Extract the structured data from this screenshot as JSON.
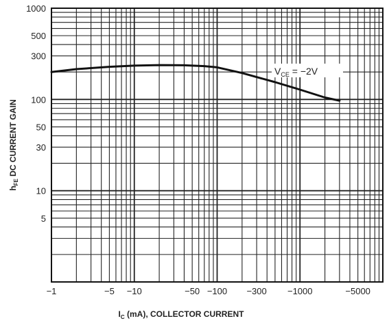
{
  "chart_data": {
    "type": "line",
    "title": "",
    "xlabel": "I_C (mA), COLLECTOR CURRENT",
    "ylabel": "h_FE DC CURRENT GAIN",
    "x_scale": "log",
    "y_scale": "log",
    "xlim": [
      1,
      10000
    ],
    "ylim": [
      1,
      1000
    ],
    "grid": true,
    "x_ticks": [
      {
        "value": 1,
        "label": "−1"
      },
      {
        "value": 5,
        "label": "−5"
      },
      {
        "value": 10,
        "label": "−10"
      },
      {
        "value": 50,
        "label": "−50"
      },
      {
        "value": 100,
        "label": "−100"
      },
      {
        "value": 300,
        "label": "−300"
      },
      {
        "value": 1000,
        "label": "−1000"
      },
      {
        "value": 5000,
        "label": "−5000"
      }
    ],
    "y_ticks": [
      {
        "value": 1000,
        "label": "1000"
      },
      {
        "value": 500,
        "label": "500"
      },
      {
        "value": 300,
        "label": "300"
      },
      {
        "value": 100,
        "label": "100"
      },
      {
        "value": 50,
        "label": "50"
      },
      {
        "value": 30,
        "label": "30"
      },
      {
        "value": 10,
        "label": "10"
      },
      {
        "value": 5,
        "label": "5"
      }
    ],
    "series": [
      {
        "name": "VCE = −2V",
        "x": [
          1,
          2,
          5,
          10,
          20,
          40,
          70,
          100,
          200,
          500,
          1000,
          2000,
          3000
        ],
        "y": [
          200,
          215,
          228,
          235,
          238,
          237,
          232,
          225,
          195,
          155,
          128,
          105,
          97
        ]
      }
    ],
    "annotations": [
      {
        "label": "V",
        "sub": "CE",
        "text": "= −2V"
      }
    ]
  }
}
